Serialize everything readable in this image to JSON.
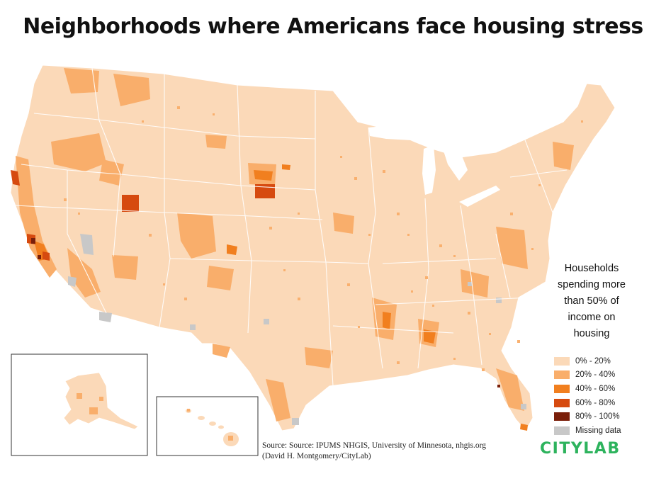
{
  "title": "Neighborhoods where Americans face housing stress",
  "legend": {
    "title": "Households spending more than 50% of income on housing",
    "items": [
      {
        "label": "0% - 20%",
        "color": "#fbd9b8"
      },
      {
        "label": "20% - 40%",
        "color": "#f9ae6b"
      },
      {
        "label": "40% - 60%",
        "color": "#f17f1f"
      },
      {
        "label": "60% - 80%",
        "color": "#d64a0f"
      },
      {
        "label": "80% - 100%",
        "color": "#7a1f0a"
      },
      {
        "label": "Missing data",
        "color": "#c8c8c8"
      }
    ]
  },
  "source": {
    "line1": "Source: Source: IPUMS NHGIS, University of Minnesota, nhgis.org",
    "line2": "(David H. Montgomery/CityLab)"
  },
  "brand": {
    "part1": "CITY",
    "part2": "LAB",
    "color": "#2db35d"
  },
  "map": {
    "insets": [
      "alaska",
      "hawaii"
    ]
  }
}
